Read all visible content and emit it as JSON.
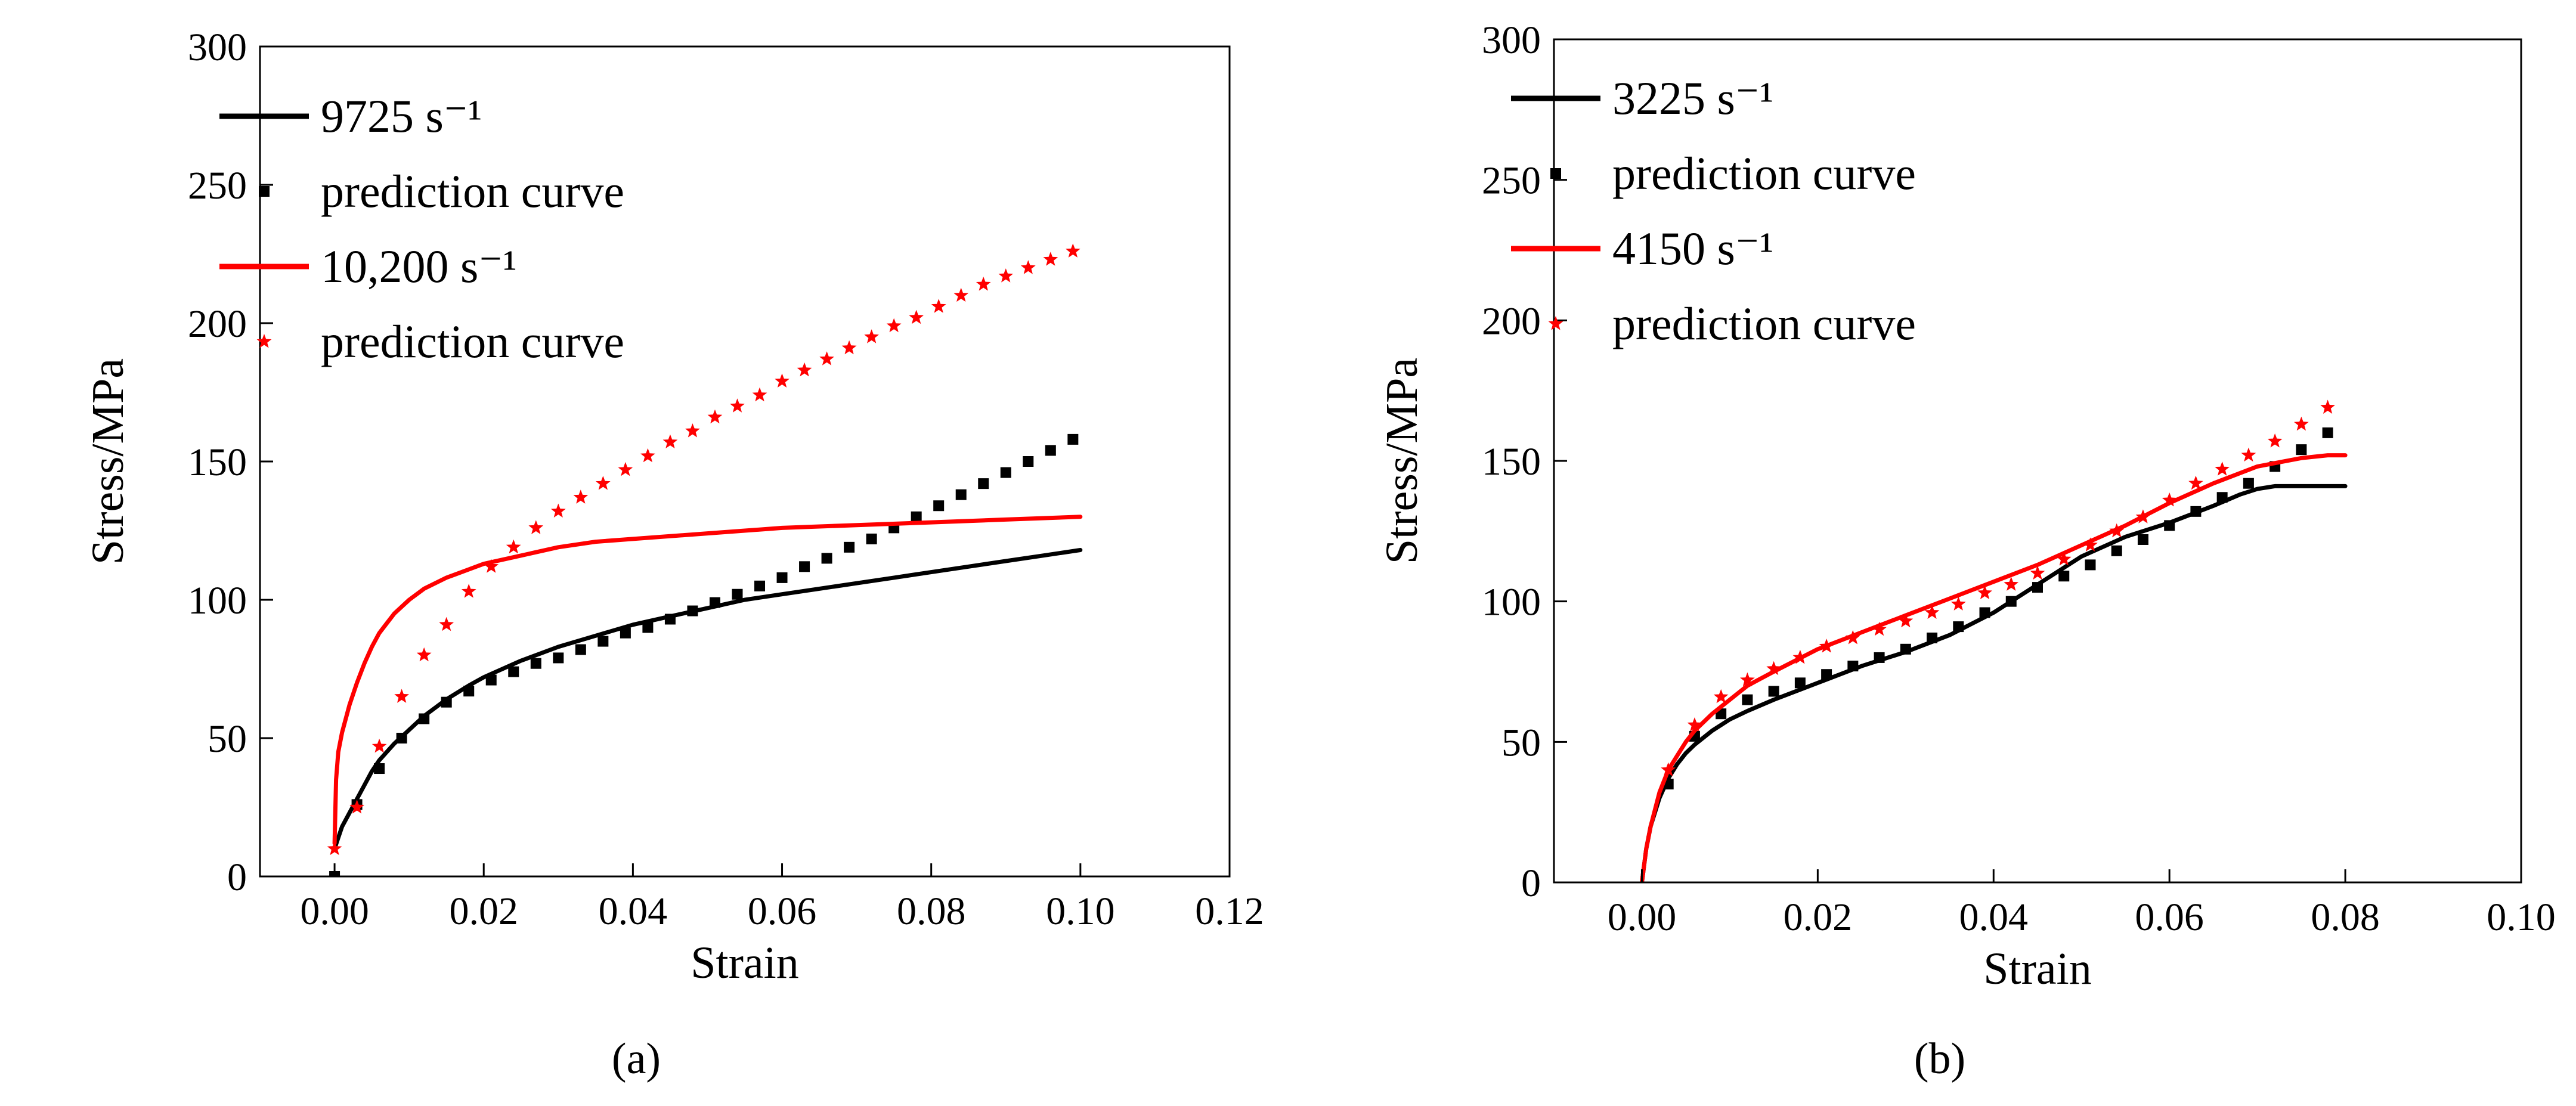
{
  "chart_data": [
    {
      "type": "line",
      "panel_label": "(a)",
      "xlabel": "Strain",
      "ylabel": "Stress/MPa",
      "xlim": [
        -0.01,
        0.12
      ],
      "ylim": [
        0,
        300
      ],
      "x_ticks": [
        0.0,
        0.02,
        0.04,
        0.06,
        0.08,
        0.1,
        0.12
      ],
      "x_tick_labels": [
        "0.00",
        "0.02",
        "0.04",
        "0.06",
        "0.08",
        "0.10",
        "0.12"
      ],
      "y_ticks": [
        0,
        50,
        100,
        150,
        200,
        250,
        300
      ],
      "y_tick_labels": [
        "0",
        "50",
        "100",
        "150",
        "200",
        "250",
        "300"
      ],
      "grid": false,
      "legend_position": "top-left",
      "series": [
        {
          "name": "9725 s⁻¹",
          "style": "line",
          "color": "#000000",
          "x": [
            0.0,
            0.0005,
            0.001,
            0.002,
            0.003,
            0.004,
            0.005,
            0.006,
            0.008,
            0.01,
            0.012,
            0.015,
            0.018,
            0.02,
            0.025,
            0.03,
            0.035,
            0.04,
            0.045,
            0.05,
            0.055,
            0.06,
            0.065,
            0.07,
            0.075,
            0.08,
            0.085,
            0.09,
            0.095,
            0.1
          ],
          "y": [
            10,
            14,
            18,
            23,
            28,
            33,
            38,
            42,
            48,
            53,
            58,
            64,
            69,
            72,
            78,
            83,
            87,
            91,
            94,
            97,
            100,
            102,
            104,
            106,
            108,
            110,
            112,
            114,
            116,
            118
          ]
        },
        {
          "name": "prediction curve",
          "style": "square",
          "color": "#000000",
          "x": [
            0.0,
            0.003,
            0.006,
            0.009,
            0.012,
            0.015,
            0.018,
            0.021,
            0.024,
            0.027,
            0.03,
            0.033,
            0.036,
            0.039,
            0.042,
            0.045,
            0.048,
            0.051,
            0.054,
            0.057,
            0.06,
            0.063,
            0.066,
            0.069,
            0.072,
            0.075,
            0.078,
            0.081,
            0.084,
            0.087,
            0.09,
            0.093,
            0.096,
            0.099
          ],
          "y": [
            0,
            26,
            39,
            50,
            57,
            63,
            67,
            71,
            74,
            77,
            79,
            82,
            85,
            88,
            90,
            93,
            96,
            99,
            102,
            105,
            108,
            112,
            115,
            119,
            122,
            126,
            130,
            134,
            138,
            142,
            146,
            150,
            154,
            158
          ]
        },
        {
          "name": "10,200 s⁻¹",
          "style": "line",
          "color": "#ff0000",
          "x": [
            0.0,
            0.0002,
            0.0005,
            0.001,
            0.002,
            0.003,
            0.004,
            0.005,
            0.006,
            0.008,
            0.01,
            0.012,
            0.015,
            0.018,
            0.02,
            0.025,
            0.03,
            0.035,
            0.04,
            0.05,
            0.06,
            0.07,
            0.08,
            0.09,
            0.1
          ],
          "y": [
            12,
            35,
            45,
            52,
            62,
            70,
            77,
            83,
            88,
            95,
            100,
            104,
            108,
            111,
            113,
            116,
            119,
            121,
            122,
            124,
            126,
            127,
            128,
            129,
            130
          ]
        },
        {
          "name": "prediction curve",
          "style": "star",
          "color": "#ff0000",
          "x": [
            0.0,
            0.003,
            0.006,
            0.009,
            0.012,
            0.015,
            0.018,
            0.021,
            0.024,
            0.027,
            0.03,
            0.033,
            0.036,
            0.039,
            0.042,
            0.045,
            0.048,
            0.051,
            0.054,
            0.057,
            0.06,
            0.063,
            0.066,
            0.069,
            0.072,
            0.075,
            0.078,
            0.081,
            0.084,
            0.087,
            0.09,
            0.093,
            0.096,
            0.099
          ],
          "y": [
            10,
            25,
            47,
            65,
            80,
            91,
            103,
            112,
            119,
            126,
            132,
            137,
            142,
            147,
            152,
            157,
            161,
            166,
            170,
            174,
            179,
            183,
            187,
            191,
            195,
            199,
            202,
            206,
            210,
            214,
            217,
            220,
            223,
            226
          ]
        }
      ]
    },
    {
      "type": "line",
      "panel_label": "(b)",
      "xlabel": "Strain",
      "ylabel": "Stress/MPa",
      "xlim": [
        -0.01,
        0.1
      ],
      "ylim": [
        0,
        300
      ],
      "x_ticks": [
        0.0,
        0.02,
        0.04,
        0.06,
        0.08,
        0.1
      ],
      "x_tick_labels": [
        "0.00",
        "0.02",
        "0.04",
        "0.06",
        "0.08",
        "0.10"
      ],
      "y_ticks": [
        0,
        50,
        100,
        150,
        200,
        250,
        300
      ],
      "y_tick_labels": [
        "0",
        "50",
        "100",
        "150",
        "200",
        "250",
        "300"
      ],
      "grid": false,
      "legend_position": "top-left",
      "series": [
        {
          "name": "3225 s⁻¹",
          "style": "line",
          "color": "#000000",
          "x": [
            0.0,
            0.0005,
            0.001,
            0.002,
            0.003,
            0.004,
            0.005,
            0.006,
            0.008,
            0.01,
            0.012,
            0.015,
            0.02,
            0.025,
            0.03,
            0.035,
            0.04,
            0.045,
            0.05,
            0.055,
            0.06,
            0.065,
            0.068,
            0.07,
            0.072,
            0.075,
            0.078,
            0.08
          ],
          "y": [
            0,
            12,
            20,
            30,
            37,
            42,
            46,
            49,
            54,
            58,
            61,
            65,
            71,
            77,
            82,
            88,
            96,
            106,
            116,
            123,
            128,
            134,
            138,
            140,
            141,
            141,
            141,
            141
          ]
        },
        {
          "name": "prediction curve",
          "style": "square",
          "color": "#000000",
          "x": [
            0.003,
            0.006,
            0.009,
            0.012,
            0.015,
            0.018,
            0.021,
            0.024,
            0.027,
            0.03,
            0.033,
            0.036,
            0.039,
            0.042,
            0.045,
            0.048,
            0.051,
            0.054,
            0.057,
            0.06,
            0.063,
            0.066,
            0.069,
            0.072,
            0.075,
            0.078
          ],
          "y": [
            35,
            52,
            60,
            65,
            68,
            71,
            74,
            77,
            80,
            83,
            87,
            91,
            96,
            100,
            105,
            109,
            113,
            118,
            122,
            127,
            132,
            137,
            142,
            148,
            154,
            160
          ]
        },
        {
          "name": "4150 s⁻¹",
          "style": "line",
          "color": "#ff0000",
          "x": [
            0.0,
            0.0005,
            0.001,
            0.002,
            0.003,
            0.004,
            0.005,
            0.006,
            0.008,
            0.01,
            0.012,
            0.015,
            0.02,
            0.025,
            0.03,
            0.035,
            0.04,
            0.045,
            0.05,
            0.055,
            0.06,
            0.065,
            0.07,
            0.075,
            0.078,
            0.08
          ],
          "y": [
            0,
            12,
            20,
            32,
            40,
            45,
            50,
            54,
            60,
            65,
            70,
            75,
            83,
            89,
            95,
            101,
            107,
            113,
            120,
            127,
            135,
            142,
            148,
            151,
            152,
            152
          ]
        },
        {
          "name": "prediction curve",
          "style": "star",
          "color": "#ff0000",
          "x": [
            0.003,
            0.006,
            0.009,
            0.012,
            0.015,
            0.018,
            0.021,
            0.024,
            0.027,
            0.03,
            0.033,
            0.036,
            0.039,
            0.042,
            0.045,
            0.048,
            0.051,
            0.054,
            0.057,
            0.06,
            0.063,
            0.066,
            0.069,
            0.072,
            0.075,
            0.078
          ],
          "y": [
            40,
            56,
            66,
            72,
            76,
            80,
            84,
            87,
            90,
            93,
            96,
            99,
            103,
            106,
            110,
            115,
            120,
            125,
            130,
            136,
            142,
            147,
            152,
            157,
            163,
            169
          ]
        }
      ]
    }
  ]
}
